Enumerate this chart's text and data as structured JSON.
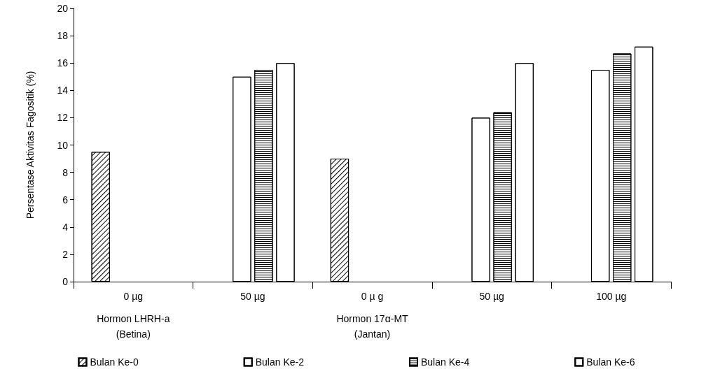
{
  "chart_data": {
    "type": "bar",
    "ylabel": "Persentase Aktivitas Fagositik (%)",
    "categories": [
      "0 µg",
      "50 µg",
      "0 µ g",
      "50 µg",
      "100 µg"
    ],
    "series": [
      {
        "name": "Bulan Ke-0",
        "color": "#ffffff",
        "values": [
          9.5,
          null,
          9,
          null,
          null
        ]
      },
      {
        "name": "Bulan Ke-2",
        "color": "#ffffff",
        "values": [
          null,
          15,
          null,
          12,
          15.5
        ]
      },
      {
        "name": "Bulan Ke-4",
        "color": "#ffffff",
        "values": [
          null,
          15.5,
          null,
          12.4,
          16.7
        ]
      },
      {
        "name": "Bulan Ke-6",
        "color": "#ffffff",
        "values": [
          null,
          16,
          null,
          16,
          17.2
        ]
      }
    ],
    "ylim": [
      0,
      20
    ],
    "yticks": [
      0,
      2,
      4,
      6,
      8,
      10,
      12,
      14,
      16,
      18,
      20
    ],
    "grid": false,
    "legend": "bottom",
    "annotations": [
      "Hormon LHRH-a\n(Betina)",
      "Hormon 17α-MT\n(Jantan)"
    ]
  }
}
